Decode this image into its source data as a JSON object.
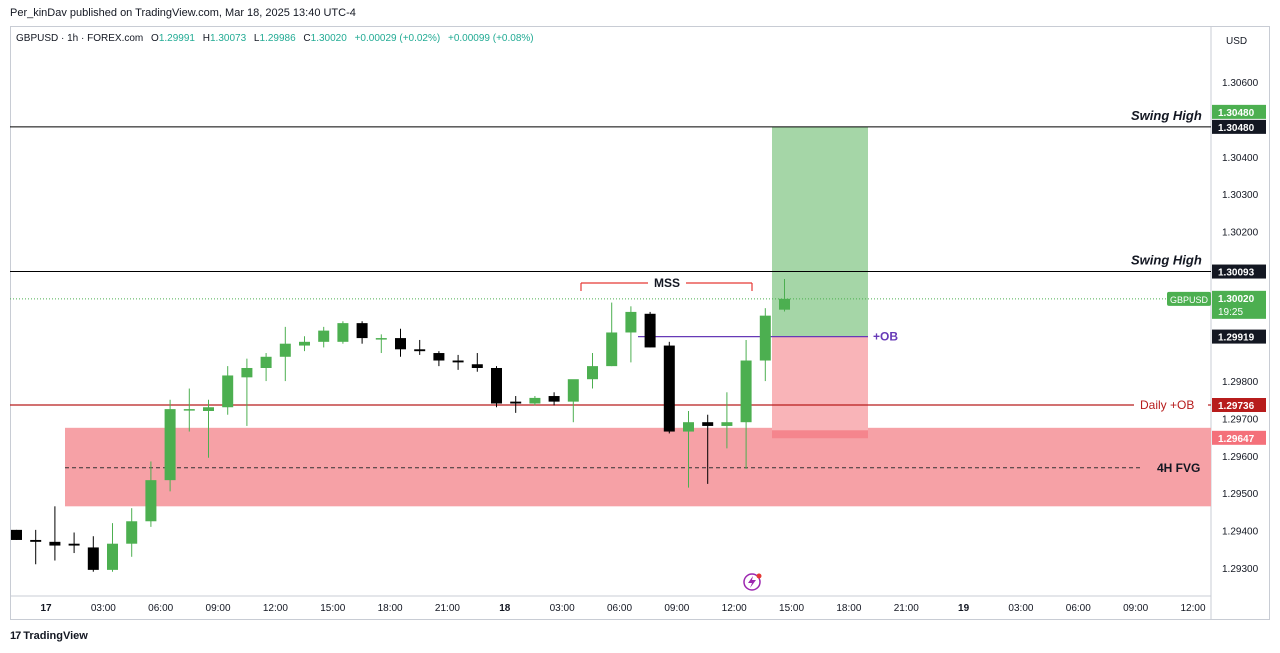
{
  "publisher_line": "Per_kinDav published on TradingView.com, Mar 18, 2025 13:40 UTC-4",
  "brand": "TradingView",
  "brand_logo": "tv-logo-icon",
  "legend": {
    "symbol": "GBPUSD · 1h · FOREX.com",
    "o_label": "O",
    "o": "1.29991",
    "h_label": "H",
    "h": "1.30073",
    "l_label": "L",
    "l": "1.29986",
    "c_label": "C",
    "c": "1.30020",
    "change": "+0.00029 (+0.02%)",
    "change2": "+0.00099 (+0.08%)"
  },
  "currency": "USD",
  "colors": {
    "up": "#4caf50",
    "down": "#000000",
    "fvg": "#f6a1a6",
    "target": "#a5d6a7",
    "stop": "#f9b4b8",
    "dailyob": "#b71c1c",
    "ob": "#673ab7",
    "mss": "#e53935"
  },
  "chart_data": {
    "type": "candlestick",
    "symbol": "GBPUSD",
    "interval": "1h",
    "y_ticks": [
      1.306,
      1.304,
      1.303,
      1.302,
      1.298,
      1.297,
      1.296,
      1.295,
      1.294,
      1.293
    ],
    "y_tick_labels": [
      "1.30600",
      "1.30400",
      "1.30300",
      "1.30200",
      "1.29800",
      "1.29700",
      "1.29600",
      "1.29500",
      "1.29400",
      "1.29300"
    ],
    "x_tick_labels": [
      "17",
      "03:00",
      "06:00",
      "09:00",
      "12:00",
      "15:00",
      "18:00",
      "21:00",
      "18",
      "03:00",
      "06:00",
      "09:00",
      "12:00",
      "15:00",
      "18:00",
      "21:00",
      "19",
      "03:00",
      "06:00",
      "09:00",
      "12:00"
    ],
    "candles": [
      {
        "o": 1.29402,
        "h": 1.29402,
        "l": 1.29375,
        "c": 1.29375
      },
      {
        "o": 1.29375,
        "h": 1.29402,
        "l": 1.2931,
        "c": 1.2937
      },
      {
        "o": 1.2937,
        "h": 1.29465,
        "l": 1.2932,
        "c": 1.2936
      },
      {
        "o": 1.29365,
        "h": 1.29395,
        "l": 1.2934,
        "c": 1.2936
      },
      {
        "o": 1.29355,
        "h": 1.29385,
        "l": 1.2929,
        "c": 1.29295
      },
      {
        "o": 1.29295,
        "h": 1.2942,
        "l": 1.2929,
        "c": 1.29365
      },
      {
        "o": 1.29365,
        "h": 1.2946,
        "l": 1.2933,
        "c": 1.29425
      },
      {
        "o": 1.29425,
        "h": 1.29585,
        "l": 1.2941,
        "c": 1.29535
      },
      {
        "o": 1.29535,
        "h": 1.2975,
        "l": 1.29505,
        "c": 1.29725
      },
      {
        "o": 1.29725,
        "h": 1.2978,
        "l": 1.29665,
        "c": 1.29725
      },
      {
        "o": 1.2972,
        "h": 1.2975,
        "l": 1.29595,
        "c": 1.2973
      },
      {
        "o": 1.2973,
        "h": 1.2984,
        "l": 1.2971,
        "c": 1.29815
      },
      {
        "o": 1.2981,
        "h": 1.2986,
        "l": 1.2968,
        "c": 1.29835
      },
      {
        "o": 1.29835,
        "h": 1.29875,
        "l": 1.298,
        "c": 1.29865
      },
      {
        "o": 1.29865,
        "h": 1.29945,
        "l": 1.298,
        "c": 1.299
      },
      {
        "o": 1.29895,
        "h": 1.2992,
        "l": 1.2988,
        "c": 1.29905
      },
      {
        "o": 1.29905,
        "h": 1.29945,
        "l": 1.2989,
        "c": 1.29935
      },
      {
        "o": 1.29905,
        "h": 1.2996,
        "l": 1.299,
        "c": 1.29955
      },
      {
        "o": 1.29955,
        "h": 1.2996,
        "l": 1.299,
        "c": 1.29915
      },
      {
        "o": 1.29915,
        "h": 1.29925,
        "l": 1.29875,
        "c": 1.29915
      },
      {
        "o": 1.29915,
        "h": 1.2994,
        "l": 1.29865,
        "c": 1.29885
      },
      {
        "o": 1.29885,
        "h": 1.2991,
        "l": 1.2987,
        "c": 1.2988
      },
      {
        "o": 1.29875,
        "h": 1.2988,
        "l": 1.2984,
        "c": 1.29855
      },
      {
        "o": 1.29855,
        "h": 1.2987,
        "l": 1.2983,
        "c": 1.2985
      },
      {
        "o": 1.29845,
        "h": 1.29875,
        "l": 1.29825,
        "c": 1.29835
      },
      {
        "o": 1.29835,
        "h": 1.2984,
        "l": 1.2973,
        "c": 1.2974
      },
      {
        "o": 1.29745,
        "h": 1.2976,
        "l": 1.29715,
        "c": 1.2974
      },
      {
        "o": 1.2974,
        "h": 1.2976,
        "l": 1.29735,
        "c": 1.29755
      },
      {
        "o": 1.2976,
        "h": 1.2977,
        "l": 1.29735,
        "c": 1.29745
      },
      {
        "o": 1.29745,
        "h": 1.298,
        "l": 1.2969,
        "c": 1.29805
      },
      {
        "o": 1.29805,
        "h": 1.29875,
        "l": 1.2978,
        "c": 1.2984
      },
      {
        "o": 1.2984,
        "h": 1.3001,
        "l": 1.2984,
        "c": 1.2993
      },
      {
        "o": 1.2993,
        "h": 1.3,
        "l": 1.2985,
        "c": 1.29985
      },
      {
        "o": 1.2998,
        "h": 1.29985,
        "l": 1.2989,
        "c": 1.2989
      },
      {
        "o": 1.29895,
        "h": 1.29905,
        "l": 1.2966,
        "c": 1.29665
      },
      {
        "o": 1.29665,
        "h": 1.2972,
        "l": 1.29515,
        "c": 1.2969
      },
      {
        "o": 1.2969,
        "h": 1.2971,
        "l": 1.29525,
        "c": 1.2968
      },
      {
        "o": 1.2968,
        "h": 1.2977,
        "l": 1.2962,
        "c": 1.2969
      },
      {
        "o": 1.2969,
        "h": 1.2991,
        "l": 1.29565,
        "c": 1.29855
      },
      {
        "o": 1.29855,
        "h": 1.29995,
        "l": 1.298,
        "c": 1.29975
      },
      {
        "o": 1.29991,
        "h": 1.30073,
        "l": 1.29986,
        "c": 1.3002
      }
    ],
    "levels": [
      {
        "name": "swing-high-upper",
        "price": 1.3048,
        "label": "Swing High",
        "tag": "1.30480"
      },
      {
        "name": "swing-high-lower",
        "price": 1.30093,
        "label": "Swing High",
        "tag": "1.30093"
      },
      {
        "name": "daily-ob",
        "price": 1.29736,
        "label": "Daily +OB",
        "tag": "1.29736"
      }
    ],
    "current_price": {
      "symbol": "GBPUSD",
      "price": 1.3002,
      "tag": "1.30020",
      "countdown": "19:25"
    },
    "target_tag": "1.30480",
    "ob": {
      "price": 1.29919,
      "label": "+OB",
      "tag": "1.29919"
    },
    "mss": {
      "price": 1.30073,
      "label": "MSS"
    },
    "fvg": {
      "top": 1.29675,
      "bottom": 1.29465,
      "mid": 1.29568,
      "label": "4H FVG",
      "tag": "1.29647"
    },
    "position": {
      "type": "long",
      "entry": 1.29919,
      "target": 1.3048,
      "stop": 1.29647
    }
  }
}
